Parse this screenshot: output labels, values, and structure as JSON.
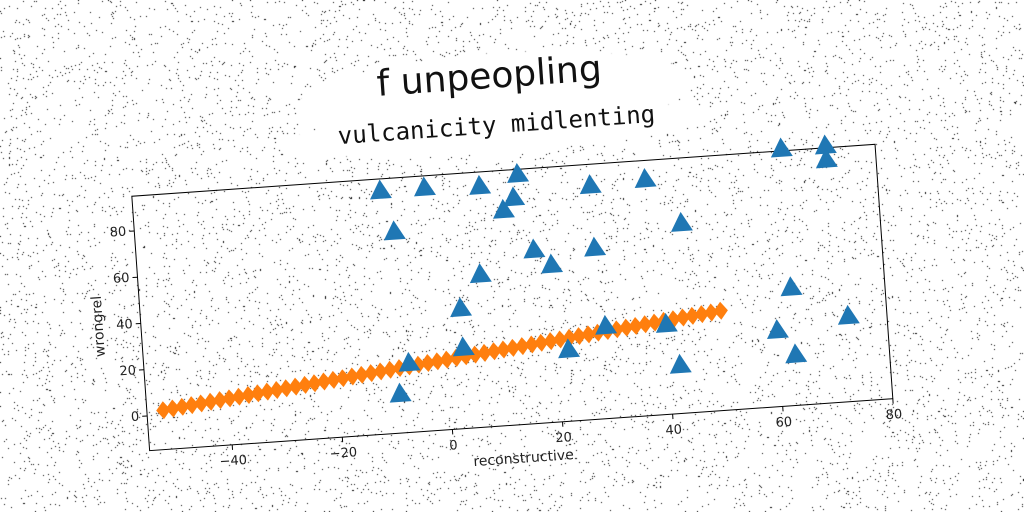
{
  "chart_data": {
    "type": "scatter",
    "title": "f unpeopling",
    "subtitle": "vulcanicity midlenting",
    "xlabel": "reconstructive",
    "ylabel": "wrongrel",
    "xlim": [
      -55,
      80
    ],
    "ylim": [
      -15,
      95
    ],
    "xticks": [
      -40,
      -20,
      0,
      20,
      40,
      60,
      80
    ],
    "yticks": [
      0,
      20,
      40,
      60,
      80
    ],
    "grid": false,
    "colors": {
      "triangles": "#1f77b4",
      "diamonds": "#ff7f0e"
    },
    "series": [
      {
        "marker": "triangle",
        "points": [
          [
            -10,
            90
          ],
          [
            -2,
            90
          ],
          [
            8,
            89
          ],
          [
            15,
            93
          ],
          [
            28,
            86
          ],
          [
            38,
            87
          ],
          [
            63,
            96
          ],
          [
            71,
            96
          ],
          [
            71,
            90
          ],
          [
            14,
            83
          ],
          [
            12,
            78
          ],
          [
            -8,
            72
          ],
          [
            17,
            60
          ],
          [
            44,
            67
          ],
          [
            28,
            59
          ],
          [
            20,
            53
          ],
          [
            7,
            51
          ],
          [
            3,
            37
          ],
          [
            63,
            36
          ],
          [
            73,
            22
          ],
          [
            29,
            25
          ],
          [
            40,
            24
          ],
          [
            60,
            18
          ],
          [
            22,
            16
          ],
          [
            -7,
            15
          ],
          [
            3,
            20
          ],
          [
            63,
            7
          ],
          [
            42,
            6
          ],
          [
            -9,
            2
          ]
        ]
      },
      {
        "marker": "diamond",
        "x_start": -52,
        "x_end": 50,
        "y_start": 2,
        "y_end": 28,
        "count": 60
      }
    ]
  }
}
